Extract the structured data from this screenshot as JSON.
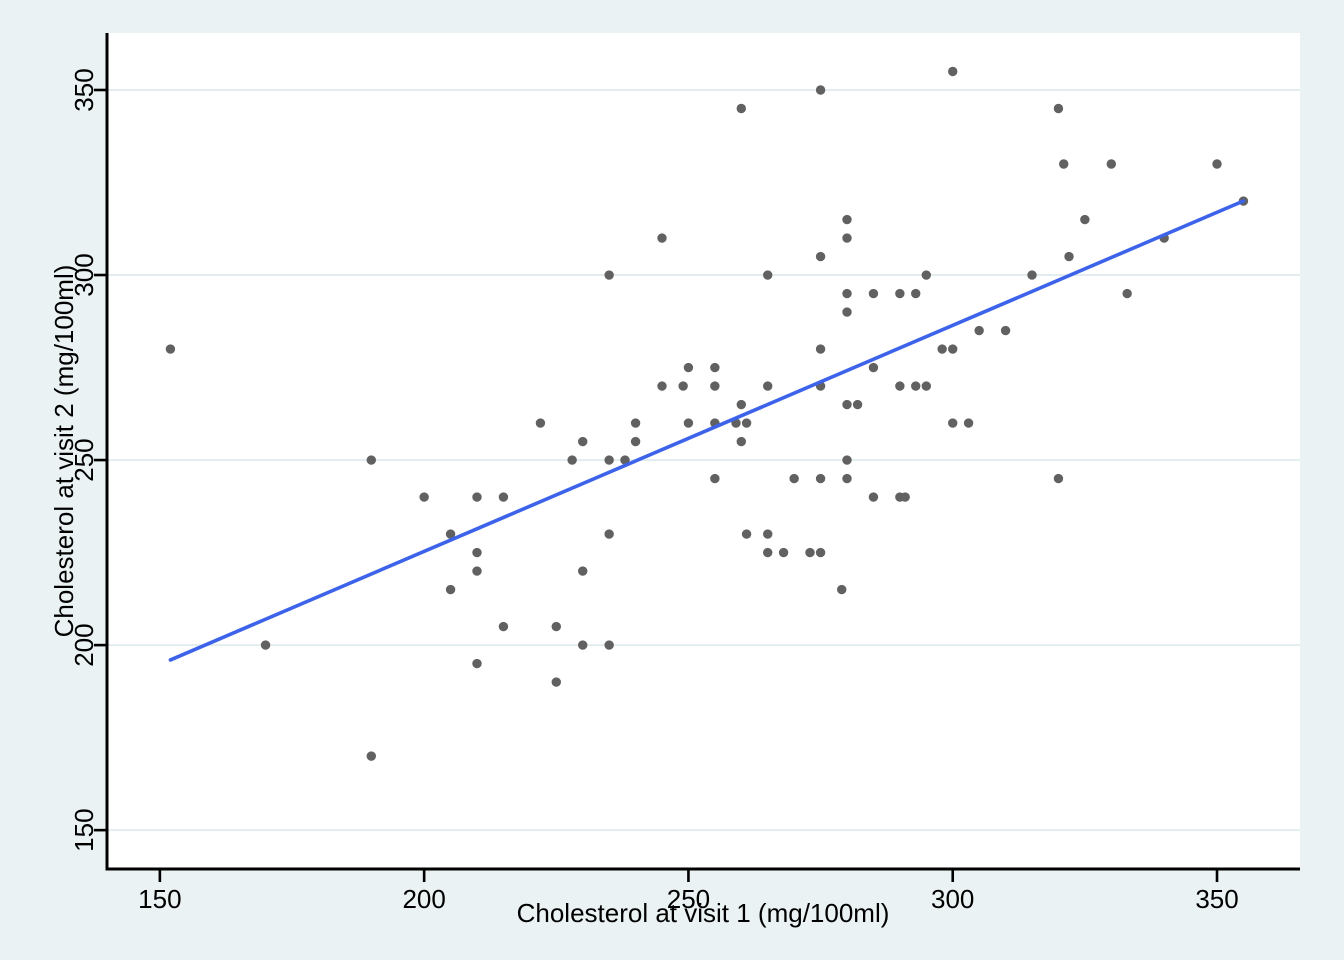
{
  "chart_data": {
    "type": "scatter",
    "title": "",
    "xlabel": "Cholesterol at visit 1 (mg/100ml)",
    "ylabel": "Cholesterol at visit 2 (mg/100ml)",
    "x_ticks": [
      150,
      200,
      250,
      300,
      350
    ],
    "y_ticks": [
      150,
      200,
      250,
      300,
      350
    ],
    "xlim": [
      140,
      365.7
    ],
    "ylim": [
      139.5,
      365.4
    ],
    "grid": "horizontal-only",
    "legend": "none",
    "points": [
      [
        152,
        280
      ],
      [
        190,
        250
      ],
      [
        200,
        240
      ],
      [
        210,
        240
      ],
      [
        215,
        240
      ],
      [
        205,
        230
      ],
      [
        210,
        225
      ],
      [
        210,
        220
      ],
      [
        170,
        200
      ],
      [
        205,
        215
      ],
      [
        215,
        205
      ],
      [
        210,
        195
      ],
      [
        190,
        170
      ],
      [
        225,
        205
      ],
      [
        230,
        200
      ],
      [
        235,
        200
      ],
      [
        225,
        190
      ],
      [
        279,
        215
      ],
      [
        275,
        280
      ],
      [
        250,
        275
      ],
      [
        255,
        275
      ],
      [
        245,
        270
      ],
      [
        249,
        270
      ],
      [
        255,
        270
      ],
      [
        265,
        270
      ],
      [
        275,
        270
      ],
      [
        260,
        265
      ],
      [
        280,
        265
      ],
      [
        282,
        265
      ],
      [
        222,
        260
      ],
      [
        250,
        260
      ],
      [
        255,
        260
      ],
      [
        259,
        260
      ],
      [
        261,
        260
      ],
      [
        240,
        260
      ],
      [
        230,
        255
      ],
      [
        240,
        255
      ],
      [
        260,
        255
      ],
      [
        228,
        250
      ],
      [
        235,
        250
      ],
      [
        238,
        250
      ],
      [
        280,
        250
      ],
      [
        255,
        245
      ],
      [
        270,
        245
      ],
      [
        275,
        245
      ],
      [
        280,
        245
      ],
      [
        285,
        240
      ],
      [
        235,
        230
      ],
      [
        261,
        230
      ],
      [
        265,
        230
      ],
      [
        265,
        225
      ],
      [
        268,
        225
      ],
      [
        273,
        225
      ],
      [
        275,
        225
      ],
      [
        230,
        220
      ],
      [
        275,
        350
      ],
      [
        260,
        345
      ],
      [
        245,
        310
      ],
      [
        280,
        315
      ],
      [
        280,
        310
      ],
      [
        275,
        305
      ],
      [
        235,
        300
      ],
      [
        265,
        300
      ],
      [
        280,
        295
      ],
      [
        285,
        295
      ],
      [
        290,
        295
      ],
      [
        280,
        290
      ],
      [
        300,
        355
      ],
      [
        320,
        345
      ],
      [
        321,
        330
      ],
      [
        330,
        330
      ],
      [
        350,
        330
      ],
      [
        355,
        320
      ],
      [
        325,
        315
      ],
      [
        340,
        310
      ],
      [
        322,
        305
      ],
      [
        295,
        300
      ],
      [
        315,
        300
      ],
      [
        293,
        295
      ],
      [
        333,
        295
      ],
      [
        305,
        285
      ],
      [
        310,
        285
      ],
      [
        298,
        280
      ],
      [
        300,
        280
      ],
      [
        285,
        275
      ],
      [
        293,
        270
      ],
      [
        295,
        270
      ],
      [
        290,
        270
      ],
      [
        300,
        260
      ],
      [
        303,
        260
      ],
      [
        320,
        245
      ],
      [
        290,
        240
      ],
      [
        291,
        240
      ]
    ],
    "fit_line": {
      "x1": 152,
      "y1": 196,
      "x2": 355,
      "y2": 320
    },
    "colors": {
      "background": "#eaf2f3",
      "plot_background": "#ffffff",
      "grid": "#e3edf0",
      "point": "#616161",
      "fit_line": "#3c63ea",
      "axis": "#000000"
    }
  }
}
